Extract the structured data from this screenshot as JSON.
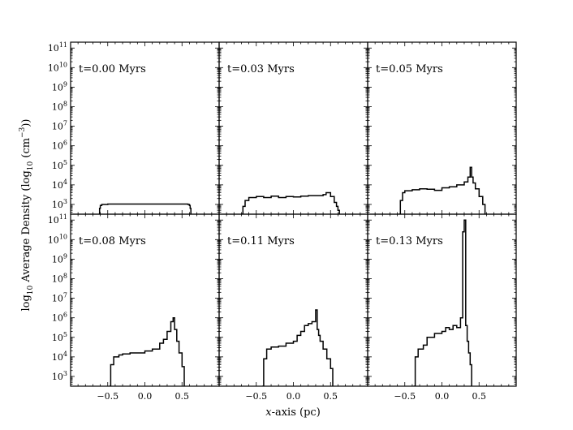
{
  "figure": {
    "ylabel_main": "log",
    "ylabel_sub": "10",
    "ylabel_rest": " Average Density (log",
    "ylabel_sub2": "10",
    "ylabel_unit": " (cm",
    "ylabel_sup": "−3",
    "ylabel_end": "))",
    "xlabel_italic": "x",
    "xlabel_rest": "-axis (pc)"
  },
  "chart_data": {
    "type": "line",
    "layout": "2x3 shared axes",
    "xlabel": "x-axis (pc)",
    "ylabel": "log10 Average Density (log10 (cm^-3))",
    "xlim": [
      -1.0,
      1.0
    ],
    "ylim_log10": [
      2.5,
      11.3
    ],
    "yscale": "log",
    "xticks": [
      -0.5,
      0.0,
      0.5
    ],
    "xtick_labels": [
      "−0.5",
      "0.0",
      "0.5"
    ],
    "yticks_exp": [
      3,
      4,
      5,
      6,
      7,
      8,
      9,
      10,
      11
    ],
    "panels": [
      {
        "label": "t=0.00 Myrs",
        "x": [
          -0.62,
          -0.61,
          -0.6,
          -0.58,
          -0.5,
          0.0,
          0.5,
          0.58,
          0.6,
          0.61,
          0.62
        ],
        "log10_y": [
          2.5,
          2.8,
          2.95,
          3.0,
          3.02,
          3.02,
          3.02,
          3.0,
          2.95,
          2.8,
          2.5
        ]
      },
      {
        "label": "t=0.03 Myrs",
        "x": [
          -0.7,
          -0.68,
          -0.65,
          -0.6,
          -0.5,
          -0.4,
          -0.3,
          -0.2,
          -0.1,
          0.0,
          0.1,
          0.2,
          0.3,
          0.4,
          0.44,
          0.5,
          0.55,
          0.58,
          0.6,
          0.62
        ],
        "log10_y": [
          2.5,
          2.9,
          3.2,
          3.35,
          3.4,
          3.35,
          3.42,
          3.35,
          3.4,
          3.38,
          3.42,
          3.45,
          3.45,
          3.5,
          3.6,
          3.4,
          3.1,
          2.9,
          2.7,
          2.5
        ]
      },
      {
        "label": "t=0.05 Myrs",
        "x": [
          -0.58,
          -0.56,
          -0.53,
          -0.5,
          -0.4,
          -0.3,
          -0.2,
          -0.1,
          0.0,
          0.1,
          0.2,
          0.3,
          0.35,
          0.38,
          0.4,
          0.42,
          0.45,
          0.5,
          0.55,
          0.58
        ],
        "log10_y": [
          2.5,
          3.2,
          3.6,
          3.7,
          3.75,
          3.8,
          3.78,
          3.72,
          3.85,
          3.9,
          4.0,
          4.15,
          4.4,
          4.9,
          4.4,
          4.1,
          3.8,
          3.4,
          3.0,
          2.5
        ]
      },
      {
        "label": "t=0.08 Myrs",
        "x": [
          -0.48,
          -0.46,
          -0.42,
          -0.35,
          -0.3,
          -0.2,
          -0.1,
          0.0,
          0.1,
          0.2,
          0.25,
          0.3,
          0.35,
          0.38,
          0.4,
          0.43,
          0.46,
          0.5,
          0.53
        ],
        "log10_y": [
          2.5,
          3.6,
          4.0,
          4.1,
          4.15,
          4.2,
          4.2,
          4.3,
          4.4,
          4.7,
          4.9,
          5.3,
          5.8,
          6.0,
          5.4,
          4.8,
          4.2,
          3.5,
          2.5
        ]
      },
      {
        "label": "t=0.11 Myrs",
        "x": [
          -0.42,
          -0.4,
          -0.36,
          -0.3,
          -0.2,
          -0.1,
          0.0,
          0.05,
          0.1,
          0.15,
          0.2,
          0.25,
          0.3,
          0.32,
          0.34,
          0.36,
          0.4,
          0.45,
          0.5,
          0.53
        ],
        "log10_y": [
          2.5,
          3.9,
          4.4,
          4.5,
          4.55,
          4.7,
          4.8,
          5.1,
          5.3,
          5.6,
          5.7,
          5.8,
          6.4,
          5.4,
          5.1,
          4.8,
          4.4,
          3.9,
          3.4,
          2.5
        ]
      },
      {
        "label": "t=0.13 Myrs",
        "x": [
          -0.38,
          -0.36,
          -0.32,
          -0.25,
          -0.2,
          -0.1,
          0.0,
          0.05,
          0.1,
          0.15,
          0.2,
          0.25,
          0.28,
          0.3,
          0.32,
          0.34,
          0.36,
          0.38,
          0.4
        ],
        "log10_y": [
          2.5,
          4.0,
          4.4,
          4.6,
          5.0,
          5.2,
          5.3,
          5.5,
          5.4,
          5.6,
          5.5,
          6.0,
          10.4,
          11.0,
          5.6,
          4.8,
          4.2,
          3.6,
          2.5
        ]
      }
    ]
  }
}
